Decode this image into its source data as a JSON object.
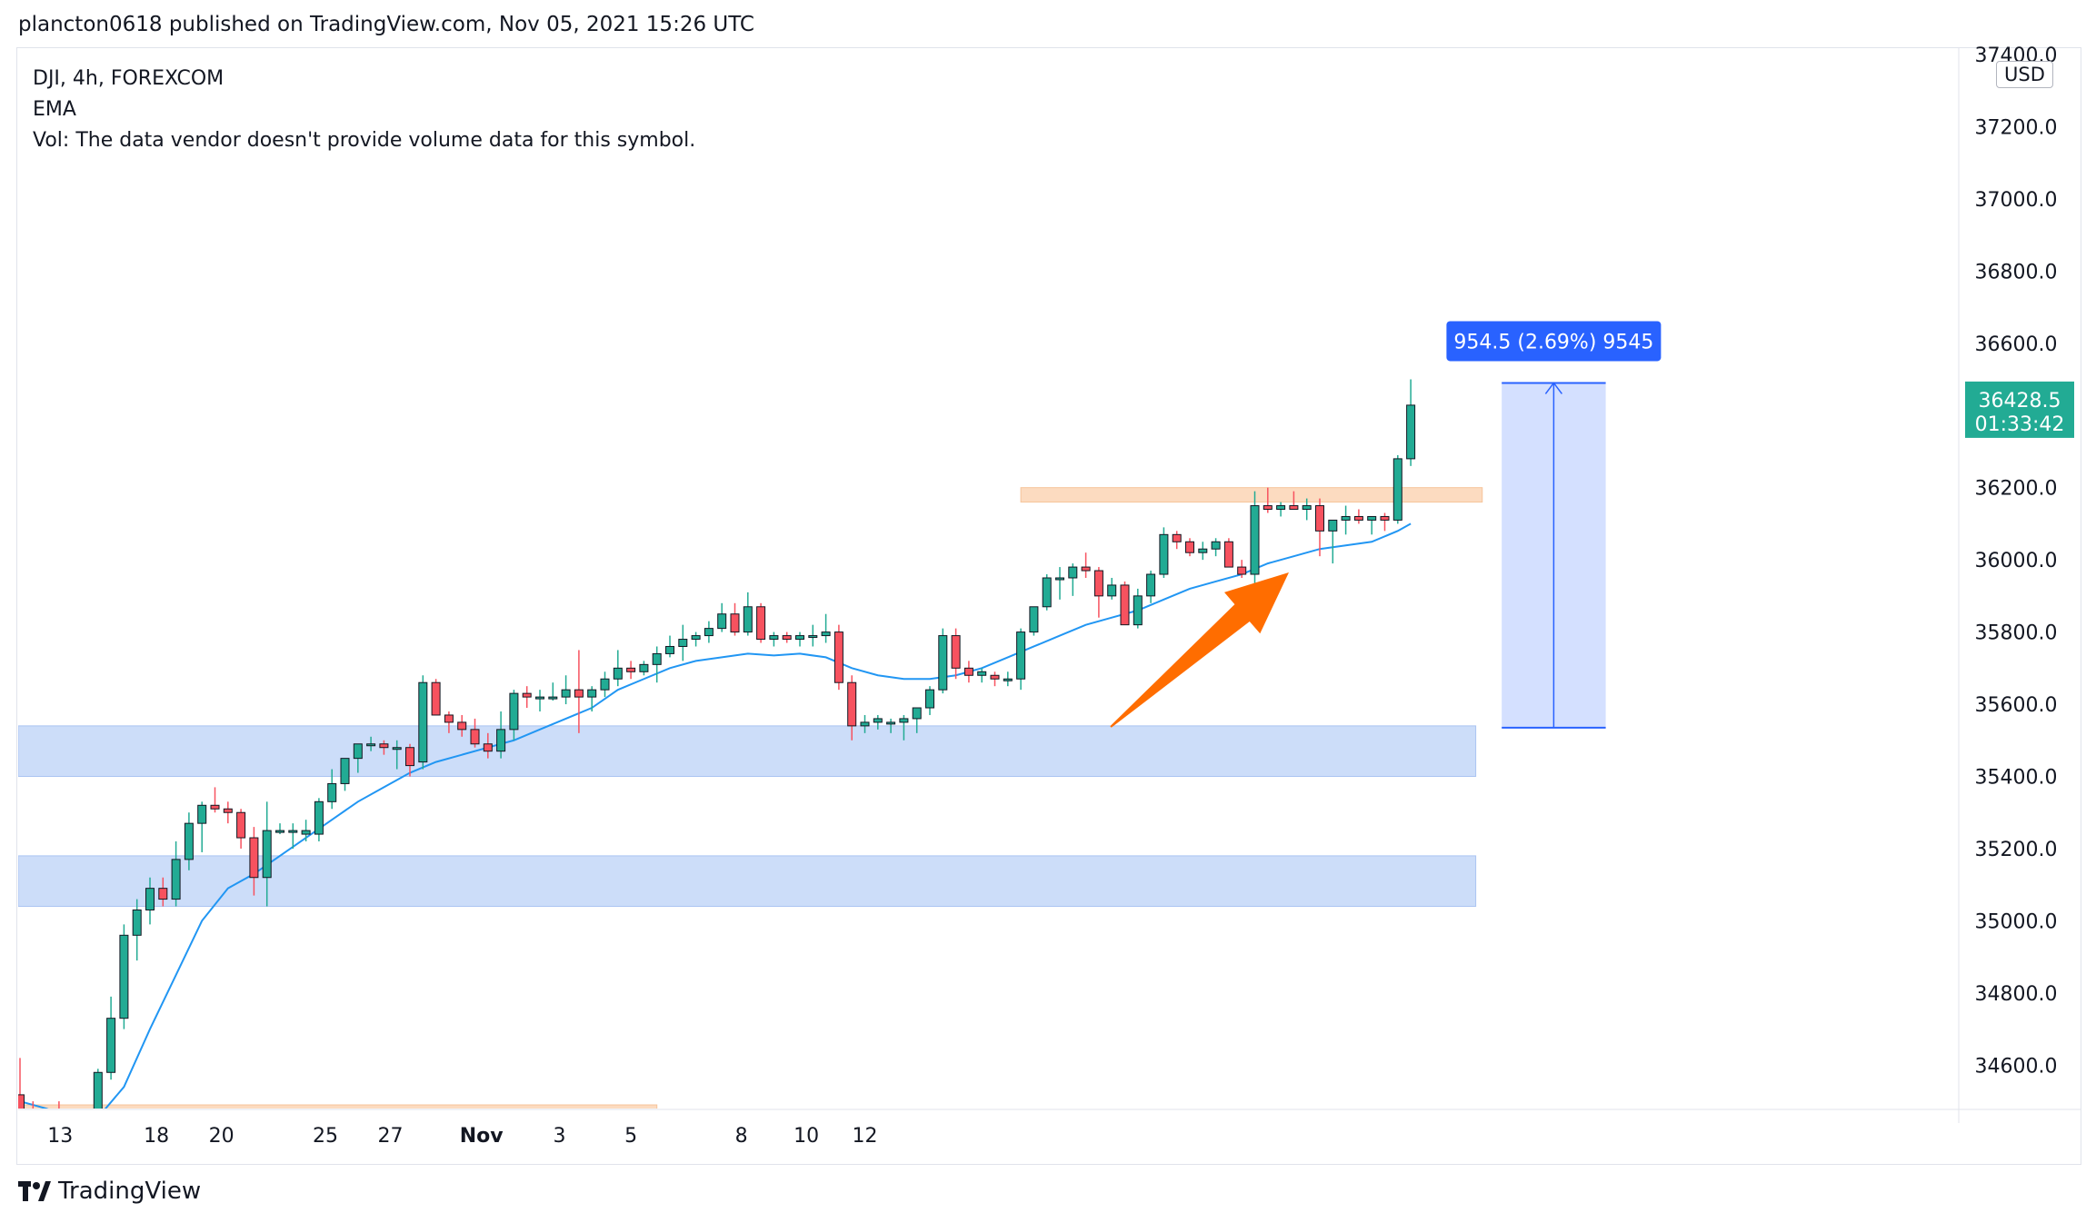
{
  "header": {
    "text": "plancton0618 published on TradingView.com, Nov 05, 2021 15:26 UTC"
  },
  "legend": {
    "symbol_line": "DJI, 4h, FOREXCOM",
    "indicator": "EMA",
    "volume_note": "Vol: The data vendor doesn't provide volume data for this symbol."
  },
  "footer": {
    "logo_text": "TradingView"
  },
  "chart_data": {
    "type": "candlestick",
    "symbol": "DJI",
    "interval": "4h",
    "exchange": "FOREXCOM",
    "currency": "USD",
    "ylim": [
      34480,
      37420
    ],
    "y_ticks": [
      "34600.0",
      "34800.0",
      "35000.0",
      "35200.0",
      "35400.0",
      "35600.0",
      "35800.0",
      "36000.0",
      "36200.0",
      "36400.0",
      "36600.0",
      "36800.0",
      "37000.0",
      "37200.0",
      "37400.0"
    ],
    "x_ticks": [
      "13",
      "18",
      "20",
      "25",
      "27",
      "Nov",
      "3",
      "5",
      "8",
      "10",
      "12"
    ],
    "x_tick_bar_index": [
      1.0,
      10.5,
      15.5,
      23.5,
      28.5,
      35.5,
      41.5,
      47.0,
      55.5,
      60.5,
      65.0
    ],
    "bar_count_range": [
      0,
      66.5
    ],
    "last_price": {
      "price": "36428.5",
      "countdown": "01:33:42",
      "color": "#22ab94"
    },
    "colors": {
      "up": "#22ab94",
      "down": "#f7525f",
      "ema": "#2196f3",
      "support_zone": "#c7d9f8",
      "resistance_zone": "#fbd5b5",
      "measure": "#2962ff",
      "arrow": "#ff6d00"
    },
    "candles": [
      [
        34518,
        34620,
        34460,
        34470
      ],
      [
        34470,
        34500,
        34440,
        34460
      ],
      [
        34450,
        34480,
        34440,
        34470
      ],
      [
        34470,
        34500,
        34455,
        34465
      ],
      [
        34460,
        34480,
        34440,
        34470
      ],
      [
        34470,
        34480,
        34410,
        34460
      ],
      [
        34465,
        34590,
        34450,
        34580
      ],
      [
        34580,
        34790,
        34560,
        34730
      ],
      [
        34730,
        34990,
        34700,
        34960
      ],
      [
        34960,
        35060,
        34890,
        35030
      ],
      [
        35030,
        35120,
        34990,
        35090
      ],
      [
        35090,
        35120,
        35040,
        35060
      ],
      [
        35060,
        35220,
        35040,
        35170
      ],
      [
        35170,
        35300,
        35140,
        35270
      ],
      [
        35270,
        35330,
        35190,
        35320
      ],
      [
        35320,
        35370,
        35300,
        35310
      ],
      [
        35310,
        35330,
        35270,
        35300
      ],
      [
        35300,
        35310,
        35200,
        35230
      ],
      [
        35230,
        35260,
        35070,
        35120
      ],
      [
        35120,
        35330,
        35040,
        35250
      ],
      [
        35250,
        35270,
        35240,
        35250
      ],
      [
        35250,
        35270,
        35200,
        35250
      ],
      [
        35240,
        35280,
        35220,
        35250
      ],
      [
        35240,
        35340,
        35220,
        35330
      ],
      [
        35330,
        35420,
        35310,
        35380
      ],
      [
        35380,
        35440,
        35360,
        35450
      ],
      [
        35450,
        35490,
        35410,
        35490
      ],
      [
        35490,
        35510,
        35470,
        35490
      ],
      [
        35490,
        35500,
        35460,
        35480
      ],
      [
        35480,
        35500,
        35420,
        35480
      ],
      [
        35480,
        35490,
        35400,
        35430
      ],
      [
        35440,
        35680,
        35420,
        35660
      ],
      [
        35660,
        35670,
        35570,
        35570
      ],
      [
        35570,
        35580,
        35520,
        35550
      ],
      [
        35550,
        35570,
        35510,
        35530
      ],
      [
        35530,
        35560,
        35480,
        35490
      ],
      [
        35490,
        35520,
        35450,
        35470
      ],
      [
        35470,
        35580,
        35450,
        35530
      ],
      [
        35530,
        35640,
        35500,
        35630
      ],
      [
        35630,
        35650,
        35590,
        35620
      ],
      [
        35620,
        35640,
        35580,
        35620
      ],
      [
        35620,
        35660,
        35610,
        35620
      ],
      [
        35620,
        35680,
        35600,
        35640
      ],
      [
        35640,
        35750,
        35520,
        35620
      ],
      [
        35620,
        35650,
        35580,
        35640
      ],
      [
        35640,
        35690,
        35620,
        35670
      ],
      [
        35670,
        35750,
        35650,
        35700
      ],
      [
        35700,
        35720,
        35670,
        35690
      ],
      [
        35690,
        35720,
        35680,
        35710
      ],
      [
        35710,
        35760,
        35660,
        35740
      ],
      [
        35740,
        35790,
        35730,
        35760
      ],
      [
        35760,
        35820,
        35720,
        35780
      ],
      [
        35780,
        35800,
        35760,
        35790
      ],
      [
        35790,
        35830,
        35770,
        35810
      ],
      [
        35810,
        35880,
        35800,
        35850
      ],
      [
        35850,
        35880,
        35790,
        35800
      ],
      [
        35800,
        35910,
        35790,
        35870
      ],
      [
        35870,
        35880,
        35770,
        35780
      ],
      [
        35780,
        35800,
        35760,
        35790
      ],
      [
        35790,
        35800,
        35770,
        35780
      ],
      [
        35780,
        35800,
        35760,
        35790
      ],
      [
        35790,
        35820,
        35760,
        35790
      ],
      [
        35790,
        35850,
        35770,
        35800
      ],
      [
        35800,
        35820,
        35640,
        35660
      ],
      [
        35660,
        35680,
        35500,
        35540
      ],
      [
        35540,
        35570,
        35520,
        35550
      ],
      [
        35550,
        35570,
        35530,
        35560
      ],
      [
        35550,
        35560,
        35520,
        35550
      ],
      [
        35550,
        35570,
        35500,
        35560
      ],
      [
        35560,
        35590,
        35520,
        35590
      ],
      [
        35590,
        35650,
        35570,
        35640
      ],
      [
        35640,
        35810,
        35630,
        35790
      ],
      [
        35790,
        35810,
        35670,
        35700
      ],
      [
        35700,
        35720,
        35660,
        35680
      ],
      [
        35680,
        35700,
        35660,
        35690
      ],
      [
        35680,
        35690,
        35650,
        35670
      ],
      [
        35670,
        35690,
        35650,
        35670
      ],
      [
        35670,
        35810,
        35640,
        35800
      ],
      [
        35800,
        35870,
        35790,
        35870
      ],
      [
        35870,
        35960,
        35860,
        35950
      ],
      [
        35950,
        35980,
        35890,
        35950
      ],
      [
        35950,
        35990,
        35900,
        35980
      ],
      [
        35980,
        36020,
        35950,
        35970
      ],
      [
        35970,
        35980,
        35840,
        35900
      ],
      [
        35900,
        35950,
        35890,
        35930
      ],
      [
        35930,
        35940,
        35820,
        35820
      ],
      [
        35820,
        35920,
        35810,
        35900
      ],
      [
        35900,
        35970,
        35880,
        35960
      ],
      [
        35960,
        36090,
        35950,
        36070
      ],
      [
        36070,
        36080,
        36030,
        36050
      ],
      [
        36050,
        36060,
        36010,
        36020
      ],
      [
        36020,
        36050,
        36000,
        36030
      ],
      [
        36030,
        36060,
        36010,
        36050
      ],
      [
        36050,
        36060,
        35990,
        35980
      ],
      [
        35980,
        36000,
        35950,
        35960
      ],
      [
        35960,
        36190,
        35890,
        36150
      ],
      [
        36150,
        36200,
        36130,
        36140
      ],
      [
        36140,
        36160,
        36120,
        36150
      ],
      [
        36150,
        36190,
        36140,
        36140
      ],
      [
        36140,
        36170,
        36110,
        36150
      ],
      [
        36150,
        36170,
        36010,
        36080
      ],
      [
        36080,
        36110,
        35990,
        36110
      ],
      [
        36110,
        36150,
        36070,
        36120
      ],
      [
        36120,
        36140,
        36100,
        36110
      ],
      [
        36110,
        36120,
        36070,
        36120
      ],
      [
        36120,
        36130,
        36080,
        36110
      ],
      [
        36110,
        36290,
        36100,
        36280
      ],
      [
        36280,
        36500,
        36260,
        36428.5
      ]
    ],
    "ema": [
      [
        0,
        34500
      ],
      [
        2,
        34480
      ],
      [
        4,
        34455
      ],
      [
        6,
        34455
      ],
      [
        8,
        34540
      ],
      [
        10,
        34700
      ],
      [
        12,
        34850
      ],
      [
        14,
        35000
      ],
      [
        16,
        35090
      ],
      [
        18,
        35130
      ],
      [
        20,
        35180
      ],
      [
        22,
        35230
      ],
      [
        24,
        35280
      ],
      [
        26,
        35330
      ],
      [
        28,
        35370
      ],
      [
        30,
        35410
      ],
      [
        32,
        35440
      ],
      [
        34,
        35460
      ],
      [
        36,
        35480
      ],
      [
        38,
        35500
      ],
      [
        40,
        35530
      ],
      [
        42,
        35560
      ],
      [
        44,
        35590
      ],
      [
        46,
        35640
      ],
      [
        48,
        35670
      ],
      [
        50,
        35700
      ],
      [
        52,
        35720
      ],
      [
        54,
        35730
      ],
      [
        56,
        35740
      ],
      [
        58,
        35735
      ],
      [
        60,
        35740
      ],
      [
        62,
        35730
      ],
      [
        64,
        35700
      ],
      [
        66,
        35680
      ],
      [
        68,
        35670
      ],
      [
        70,
        35670
      ],
      [
        72,
        35680
      ],
      [
        74,
        35700
      ],
      [
        76,
        35730
      ],
      [
        78,
        35760
      ],
      [
        80,
        35790
      ],
      [
        82,
        35820
      ],
      [
        84,
        35840
      ],
      [
        86,
        35860
      ],
      [
        88,
        35890
      ],
      [
        90,
        35920
      ],
      [
        92,
        35940
      ],
      [
        94,
        35960
      ],
      [
        96,
        35990
      ],
      [
        98,
        36010
      ],
      [
        100,
        36030
      ],
      [
        102,
        36040
      ],
      [
        104,
        36050
      ],
      [
        106,
        36080
      ],
      [
        107,
        36100
      ]
    ],
    "zones": [
      {
        "kind": "support",
        "from_bar": -2,
        "to_bar": 112,
        "low": 35400,
        "high": 35540
      },
      {
        "kind": "support",
        "from_bar": -2,
        "to_bar": 112,
        "low": 35040,
        "high": 35180
      },
      {
        "kind": "resistance",
        "from_bar": -2,
        "to_bar": 49,
        "low": 34470,
        "high": 34490
      },
      {
        "kind": "resistance",
        "from_bar": 77,
        "to_bar": 112.5,
        "low": 36160,
        "high": 36200
      }
    ],
    "measure": {
      "from_bar": 114,
      "to_bar": 122,
      "low": 35535,
      "high": 36490,
      "label": "954.5 (2.69%) 9545"
    }
  }
}
